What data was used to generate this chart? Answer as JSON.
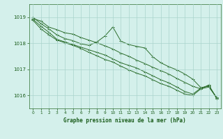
{
  "title": "Graphe pression niveau de la mer (hPa)",
  "bg_color": "#d4f0eb",
  "grid_color": "#aad4cc",
  "line_color": "#2d6e2d",
  "text_color": "#1a5c1a",
  "ylim": [
    1015.5,
    1019.5
  ],
  "xlim": [
    -0.5,
    23.5
  ],
  "yticks": [
    1016,
    1017,
    1018,
    1019
  ],
  "xticks": [
    0,
    1,
    2,
    3,
    4,
    5,
    6,
    7,
    8,
    9,
    10,
    11,
    12,
    13,
    14,
    15,
    16,
    17,
    18,
    19,
    20,
    21,
    22,
    23
  ],
  "series": [
    [
      1018.95,
      1018.85,
      1018.62,
      1018.52,
      1018.4,
      1018.35,
      1018.22,
      1018.12,
      1018.02,
      1017.9,
      1017.78,
      1017.62,
      1017.5,
      1017.35,
      1017.22,
      1017.08,
      1016.95,
      1016.82,
      1016.65,
      1016.5,
      1016.35,
      1016.25,
      1016.32,
      1015.92
    ],
    [
      1019.0,
      1018.75,
      1018.55,
      1018.32,
      1018.18,
      1018.1,
      1017.98,
      1017.92,
      1018.05,
      1018.28,
      1018.62,
      1018.08,
      1017.95,
      1017.88,
      1017.82,
      1017.48,
      1017.25,
      1017.1,
      1016.98,
      1016.82,
      1016.62,
      1016.3,
      1016.35,
      1015.9
    ],
    [
      1018.88,
      1018.55,
      1018.32,
      1018.12,
      1018.02,
      1017.92,
      1017.8,
      1017.65,
      1017.52,
      1017.38,
      1017.28,
      1017.12,
      1016.98,
      1016.85,
      1016.75,
      1016.6,
      1016.45,
      1016.35,
      1016.2,
      1016.05,
      1016.0,
      1016.25,
      1016.4,
      1015.88
    ],
    [
      1018.92,
      1018.65,
      1018.42,
      1018.15,
      1018.05,
      1017.95,
      1017.85,
      1017.75,
      1017.65,
      1017.55,
      1017.4,
      1017.25,
      1017.15,
      1017.05,
      1016.9,
      1016.75,
      1016.6,
      1016.48,
      1016.32,
      1016.15,
      1016.05,
      1016.28,
      1016.38,
      1015.88
    ]
  ]
}
